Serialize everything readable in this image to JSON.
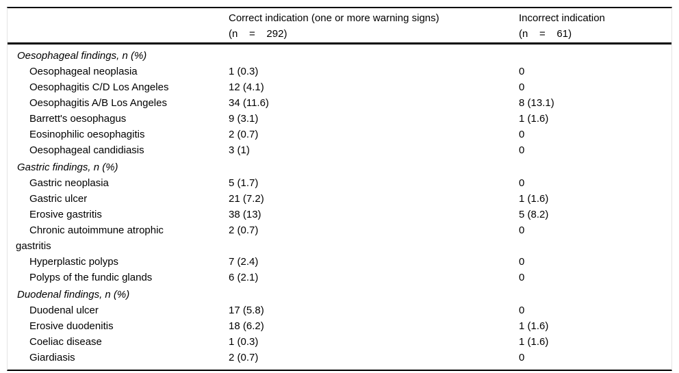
{
  "table": {
    "header": {
      "col1": "",
      "col2_line1": "Correct indication (one or more warning signs)",
      "col2_line2": "(n    =    292)",
      "col3_line1": "Incorrect indication",
      "col3_line2": "(n    =    61)"
    },
    "rows": [
      {
        "type": "section",
        "label": "Oesophageal findings, n (%)",
        "correct": "",
        "incorrect": ""
      },
      {
        "type": "item",
        "label": "Oesophageal neoplasia",
        "correct": "1 (0.3)",
        "incorrect": "0"
      },
      {
        "type": "item",
        "label": "Oesophagitis C/D Los Angeles",
        "correct": "12 (4.1)",
        "incorrect": "0"
      },
      {
        "type": "item",
        "label": "Oesophagitis A/B Los Angeles",
        "correct": "34 (11.6)",
        "incorrect": "8 (13.1)"
      },
      {
        "type": "item",
        "label": "Barrett's oesophagus",
        "correct": "9 (3.1)",
        "incorrect": "1 (1.6)"
      },
      {
        "type": "item",
        "label": "Eosinophilic oesophagitis",
        "correct": "2 (0.7)",
        "incorrect": "0"
      },
      {
        "type": "item",
        "label": "Oesophageal candidiasis",
        "correct": "3 (1)",
        "incorrect": "0"
      },
      {
        "type": "section",
        "label": "Gastric findings, n (%)",
        "correct": "",
        "incorrect": ""
      },
      {
        "type": "item",
        "label": "Gastric neoplasia",
        "correct": "5 (1.7)",
        "incorrect": "0"
      },
      {
        "type": "item",
        "label": "Gastric ulcer",
        "correct": "21 (7.2)",
        "incorrect": "1 (1.6)"
      },
      {
        "type": "item",
        "label": "Erosive gastritis",
        "correct": "38 (13)",
        "incorrect": "5 (8.2)"
      },
      {
        "type": "item",
        "label": "Chronic autoimmune atrophic gastritis",
        "correct": "2 (0.7)",
        "incorrect": "0"
      },
      {
        "type": "item",
        "label": "Hyperplastic polyps",
        "correct": "7 (2.4)",
        "incorrect": "0"
      },
      {
        "type": "item",
        "label": "Polyps of the fundic glands",
        "correct": "6 (2.1)",
        "incorrect": "0"
      },
      {
        "type": "section",
        "label": "Duodenal findings, n (%)",
        "correct": "",
        "incorrect": ""
      },
      {
        "type": "item",
        "label": "Duodenal ulcer",
        "correct": "17 (5.8)",
        "incorrect": "0"
      },
      {
        "type": "item",
        "label": "Erosive duodenitis",
        "correct": "18 (6.2)",
        "incorrect": "1 (1.6)"
      },
      {
        "type": "item",
        "label": "Coeliac disease",
        "correct": "1 (0.3)",
        "incorrect": "1 (1.6)"
      },
      {
        "type": "item",
        "label": "Giardiasis",
        "correct": "2 (0.7)",
        "incorrect": "0"
      }
    ]
  }
}
